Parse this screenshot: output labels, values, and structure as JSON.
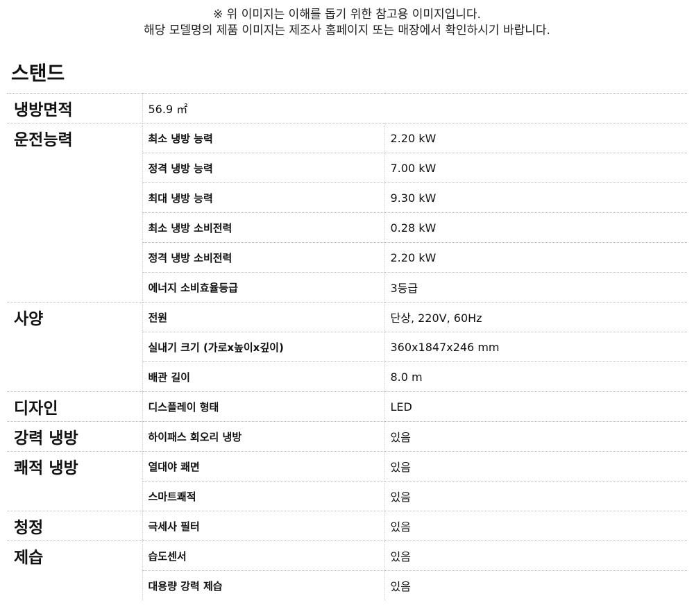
{
  "notice": [
    "※ 위 이미지는 이해를 돕기 위한 참고용 이미지입니다.",
    "해당 모델명의 제품 이미지는 제조사 홈페이지 또는 매장에서 확인하시기 바랍니다."
  ],
  "title": "스탠드",
  "area": {
    "label": "냉방면적",
    "value": "56.9 ㎡"
  },
  "groups": [
    {
      "label": "운전능력",
      "rows": [
        [
          "최소 냉방 능력",
          "2.20 kW"
        ],
        [
          "정격 냉방 능력",
          "7.00 kW"
        ],
        [
          "최대 냉방 능력",
          "9.30 kW"
        ],
        [
          "최소 냉방 소비전력",
          "0.28 kW"
        ],
        [
          "정격 냉방 소비전력",
          "2.20 kW"
        ],
        [
          "에너지 소비효율등급",
          "3등급"
        ]
      ]
    },
    {
      "label": "사양",
      "rows": [
        [
          "전원",
          "단상, 220V, 60Hz"
        ],
        [
          "실내기 크기 (가로x높이x깊이)",
          "360x1847x246 mm"
        ],
        [
          "배관 길이",
          "8.0 m"
        ]
      ]
    },
    {
      "label": "디자인",
      "rows": [
        [
          "디스플레이 형태",
          "LED"
        ]
      ]
    },
    {
      "label": "강력 냉방",
      "rows": [
        [
          "하이패스 회오리 냉방",
          "있음"
        ]
      ]
    },
    {
      "label": "쾌적 냉방",
      "rows": [
        [
          "열대야 쾌면",
          "있음"
        ],
        [
          "스마트쾌적",
          "있음"
        ]
      ]
    },
    {
      "label": "청정",
      "rows": [
        [
          "극세사 필터",
          "있음"
        ]
      ]
    },
    {
      "label": "제습",
      "rows": [
        [
          "습도센서",
          "있음"
        ],
        [
          "대용량 강력 제습",
          "있음"
        ]
      ]
    }
  ]
}
